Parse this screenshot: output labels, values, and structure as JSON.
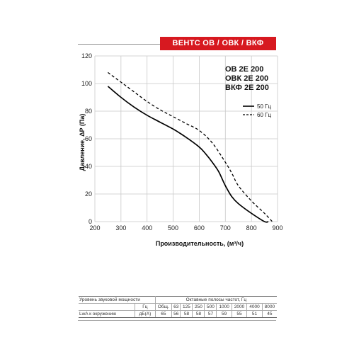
{
  "brand": "ВЕНТС ОВ / ОВК / ВКФ",
  "models": [
    "ОВ 2Е 200",
    "ОВК 2Е 200",
    "ВКФ 2Е 200"
  ],
  "chart_data": {
    "type": "line",
    "xlabel": "Производительность, (м³/ч)",
    "ylabel": "Давление, ΔP (Па)",
    "xlim": [
      200,
      900
    ],
    "ylim": [
      0,
      120
    ],
    "xticks": [
      200,
      300,
      400,
      500,
      600,
      700,
      800,
      900
    ],
    "yticks": [
      0,
      20,
      40,
      60,
      80,
      100,
      120
    ],
    "grid": true,
    "legend_position": "right",
    "series": [
      {
        "name": "50 Гц",
        "style": "solid",
        "color": "#000000",
        "x": [
          250,
          300,
          350,
          400,
          450,
          500,
          550,
          600,
          625,
          650,
          675,
          700,
          725,
          750,
          800,
          850,
          865
        ],
        "y": [
          98,
          90,
          83,
          77,
          72,
          67,
          61,
          54,
          49,
          43,
          36,
          26,
          18,
          13,
          6,
          0,
          0
        ]
      },
      {
        "name": "60 Гц",
        "style": "dashed",
        "color": "#000000",
        "x": [
          250,
          300,
          350,
          400,
          450,
          500,
          550,
          600,
          650,
          700,
          725,
          750,
          800,
          850,
          880
        ],
        "y": [
          108,
          101,
          94,
          87,
          81,
          76,
          71,
          66,
          57,
          43,
          35,
          26,
          15,
          6,
          0
        ]
      }
    ]
  },
  "noise_table": {
    "label_power": "Уровень звуковой мощности",
    "label_octave": "Октавные полосы частот, Гц",
    "row1": {
      "label": "",
      "unit": "Гц",
      "values": [
        "Общ.",
        "63",
        "125",
        "250",
        "500",
        "1000",
        "2000",
        "4000",
        "8000"
      ]
    },
    "row2": {
      "label": "LwA к окружению",
      "unit": "дБ(А)",
      "values": [
        "65",
        "56",
        "58",
        "58",
        "57",
        "59",
        "55",
        "51",
        "45"
      ]
    }
  }
}
